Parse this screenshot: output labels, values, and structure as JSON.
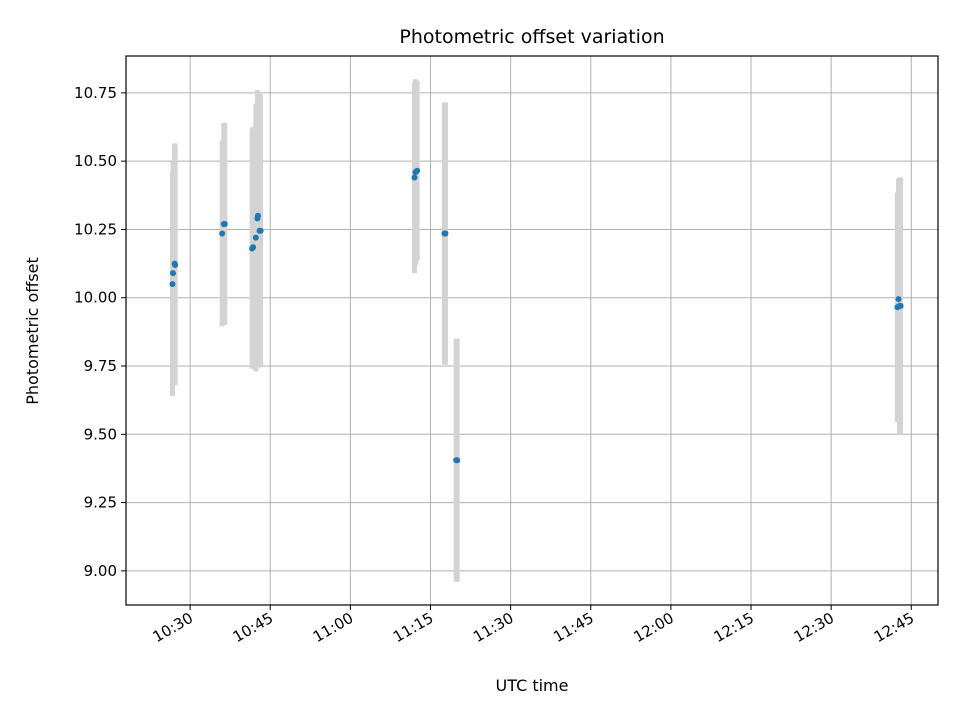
{
  "chart_data": {
    "type": "scatter",
    "title": "Photometric offset variation",
    "xlabel": "UTC time",
    "ylabel": "Photometric offset",
    "xlim": [
      "10:18",
      "12:50"
    ],
    "ylim": [
      8.875,
      10.885
    ],
    "x_ticks": [
      "10:30",
      "10:45",
      "11:00",
      "11:15",
      "11:30",
      "11:45",
      "12:00",
      "12:15",
      "12:30",
      "12:45"
    ],
    "y_ticks": [
      "9.00",
      "9.25",
      "9.50",
      "9.75",
      "10.00",
      "10.25",
      "10.50",
      "10.75"
    ],
    "grid": true,
    "marker_color": "#1f77b4",
    "errorbar_color": "#d3d3d3",
    "points": [
      {
        "time": "10:26:42",
        "offset": 10.05,
        "error": 0.41
      },
      {
        "time": "10:26:48",
        "offset": 10.09,
        "error": 0.41
      },
      {
        "time": "10:27:06",
        "offset": 10.125,
        "error": 0.44
      },
      {
        "time": "10:27:12",
        "offset": 10.12,
        "error": 0.44
      },
      {
        "time": "10:36:00",
        "offset": 10.235,
        "error": 0.34
      },
      {
        "time": "10:36:18",
        "offset": 10.27,
        "error": 0.37
      },
      {
        "time": "10:36:30",
        "offset": 10.27,
        "error": 0.37
      },
      {
        "time": "10:41:36",
        "offset": 10.18,
        "error": 0.44
      },
      {
        "time": "10:41:48",
        "offset": 10.185,
        "error": 0.44
      },
      {
        "time": "10:42:18",
        "offset": 10.22,
        "error": 0.49
      },
      {
        "time": "10:42:36",
        "offset": 10.29,
        "error": 0.47
      },
      {
        "time": "10:42:42",
        "offset": 10.3,
        "error": 0.45
      },
      {
        "time": "10:43:00",
        "offset": 10.245,
        "error": 0.5
      },
      {
        "time": "10:43:12",
        "offset": 10.245,
        "error": 0.5
      },
      {
        "time": "11:12:00",
        "offset": 10.44,
        "error": 0.35
      },
      {
        "time": "11:12:12",
        "offset": 10.46,
        "error": 0.34
      },
      {
        "time": "11:12:30",
        "offset": 10.465,
        "error": 0.33
      },
      {
        "time": "11:17:36",
        "offset": 10.235,
        "error": 0.48
      },
      {
        "time": "11:17:48",
        "offset": 10.235,
        "error": 0.48
      },
      {
        "time": "11:19:48",
        "offset": 9.405,
        "error": 0.445
      },
      {
        "time": "11:20:00",
        "offset": 9.405,
        "error": 0.445
      },
      {
        "time": "12:42:24",
        "offset": 9.965,
        "error": 0.42
      },
      {
        "time": "12:42:36",
        "offset": 9.995,
        "error": 0.44
      },
      {
        "time": "12:42:48",
        "offset": 9.97,
        "error": 0.47
      },
      {
        "time": "12:43:00",
        "offset": 9.97,
        "error": 0.47
      }
    ]
  }
}
